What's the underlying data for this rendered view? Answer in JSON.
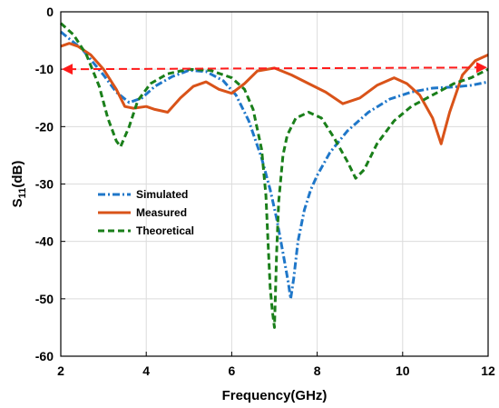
{
  "chart_data": {
    "type": "line",
    "xlabel": "Frequency(GHz)",
    "ylabel": {
      "main": "S",
      "sub": "11",
      "suffix": "(dB)"
    },
    "xlim": [
      2,
      12
    ],
    "ylim": [
      -60,
      0
    ],
    "xticks": [
      2,
      4,
      6,
      8,
      10,
      12
    ],
    "yticks": [
      0,
      -10,
      -20,
      -30,
      -40,
      -50,
      -60
    ],
    "grid": true,
    "legend_position": "center-left",
    "series": [
      {
        "name": "Simulated",
        "color": "#1f77c9",
        "style": "dashdot",
        "x": [
          2.0,
          2.5,
          3.0,
          3.3,
          3.6,
          3.9,
          4.2,
          4.6,
          5.0,
          5.4,
          5.8,
          6.1,
          6.4,
          6.7,
          6.9,
          7.05,
          7.2,
          7.32,
          7.38,
          7.45,
          7.55,
          7.7,
          7.85,
          8.0,
          8.3,
          8.7,
          9.2,
          9.7,
          10.2,
          10.7,
          11.2,
          11.6,
          12.0
        ],
        "y": [
          -3.5,
          -6.5,
          -11,
          -14,
          -15.8,
          -15,
          -13,
          -11.3,
          -10.2,
          -10.4,
          -12,
          -14.5,
          -19,
          -25.5,
          -31,
          -36,
          -42,
          -47,
          -50,
          -46.5,
          -40,
          -34.5,
          -31,
          -28.5,
          -24.5,
          -20.8,
          -17.5,
          -15.2,
          -14,
          -13.3,
          -13.1,
          -12.8,
          -12.2
        ]
      },
      {
        "name": "Measured",
        "color": "#d95319",
        "style": "solid",
        "x": [
          2.0,
          2.2,
          2.4,
          2.7,
          3.0,
          3.3,
          3.5,
          3.7,
          4.0,
          4.2,
          4.5,
          4.8,
          5.1,
          5.4,
          5.7,
          6.0,
          6.3,
          6.6,
          7.0,
          7.4,
          7.8,
          8.2,
          8.6,
          9.0,
          9.4,
          9.8,
          10.1,
          10.4,
          10.7,
          10.9,
          11.1,
          11.4,
          11.7,
          12.0
        ],
        "y": [
          -6,
          -5.5,
          -6,
          -7.5,
          -10,
          -13.5,
          -16.5,
          -16.8,
          -16.5,
          -17,
          -17.5,
          -15,
          -13,
          -12.2,
          -13.5,
          -14.2,
          -12.5,
          -10.3,
          -9.8,
          -11,
          -12.5,
          -14,
          -16,
          -15,
          -12.8,
          -11.5,
          -12.5,
          -14.5,
          -18.5,
          -23,
          -17.5,
          -11,
          -8.5,
          -7.5
        ]
      },
      {
        "name": "Theoretical",
        "color": "#1a7f1a",
        "style": "dashed",
        "x": [
          2.0,
          2.3,
          2.6,
          2.9,
          3.1,
          3.3,
          3.4,
          3.6,
          3.8,
          4.1,
          4.5,
          5.0,
          5.5,
          6.0,
          6.3,
          6.5,
          6.7,
          6.8,
          6.85,
          6.9,
          6.95,
          7.0,
          7.05,
          7.1,
          7.2,
          7.3,
          7.5,
          7.8,
          8.1,
          8.4,
          8.7,
          8.9,
          9.1,
          9.4,
          9.8,
          10.2,
          10.7,
          11.2,
          11.6,
          12.0
        ],
        "y": [
          -2,
          -4,
          -7.5,
          -13,
          -18.5,
          -22.5,
          -23.5,
          -20,
          -15.5,
          -12.5,
          -10.8,
          -10,
          -10.2,
          -11.5,
          -13.5,
          -17,
          -24,
          -32,
          -40,
          -48,
          -52,
          -55,
          -42,
          -33,
          -25,
          -21.5,
          -18.5,
          -17.5,
          -18.5,
          -22,
          -26,
          -29,
          -27.5,
          -23,
          -19,
          -16.5,
          -14.5,
          -12.5,
          -11.5,
          -10
        ]
      }
    ],
    "annotation": {
      "type": "double-arrow",
      "color": "#ff1a1a",
      "x": [
        2.0,
        12.0
      ],
      "y": [
        -10.0,
        -9.7
      ]
    }
  }
}
